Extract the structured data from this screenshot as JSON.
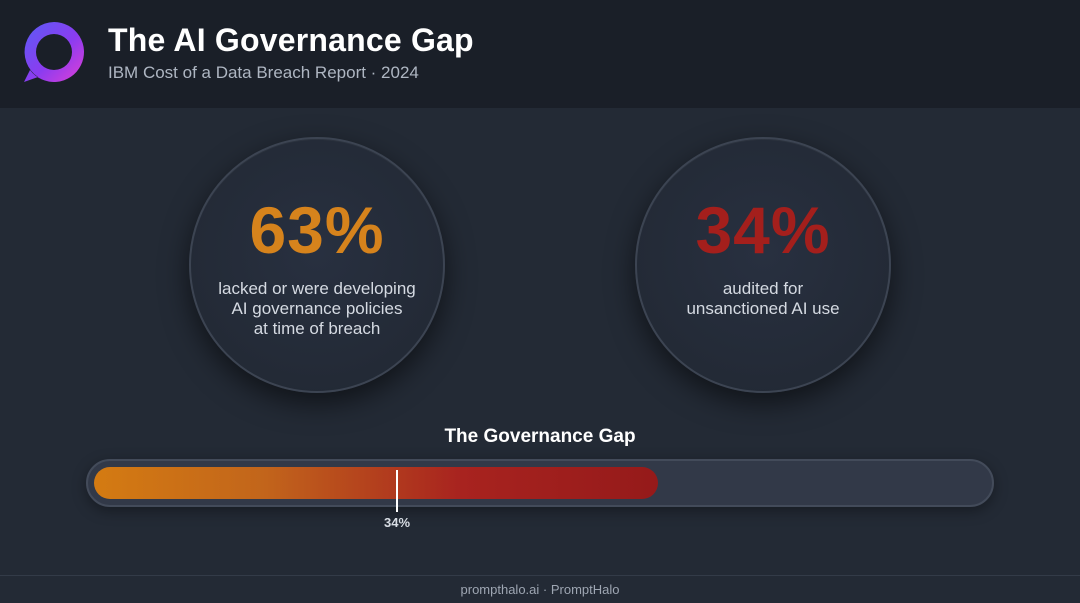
{
  "header": {
    "title": "The AI Governance Gap",
    "subtitle": "IBM Cost of a Data Breach Report · 2024",
    "logo_icon": "halo-chat-bubble-icon"
  },
  "stats": [
    {
      "value": "63%",
      "desc_lines": [
        "lacked or were developing",
        "AI governance policies",
        "at time of breach"
      ],
      "color": "#d6831c"
    },
    {
      "value": "34%",
      "desc_lines": [
        "audited for",
        "unsanctioned AI use"
      ],
      "color": "#a41f1c"
    }
  ],
  "gap": {
    "title": "The Governance Gap",
    "marker_label": "34%"
  },
  "chart_data": {
    "type": "bar",
    "title": "The Governance Gap",
    "xlim": [
      0,
      100
    ],
    "fill_value": 63,
    "marker_value": 34,
    "marker_label": "34%",
    "colors": {
      "start": "#d47b12",
      "end": "#951a1a",
      "track": "#323948"
    }
  },
  "footer": {
    "text": "prompthalo.ai · PromptHalo"
  }
}
